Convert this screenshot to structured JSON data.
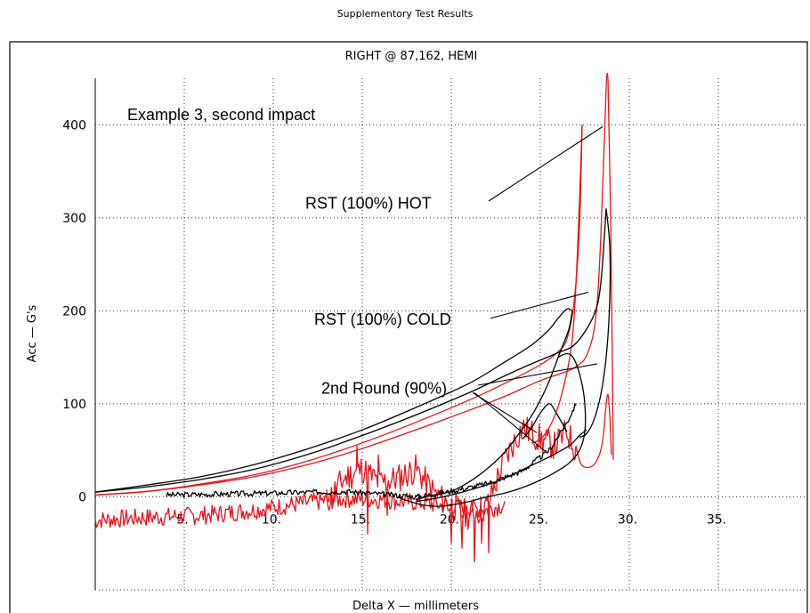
{
  "page_title": "Supplementory Test Results",
  "chart_data": {
    "type": "line",
    "title": "RIGHT @ 87,162, HEMI",
    "xlabel": "Delta X  —  millimeters",
    "ylabel": "Acc  —  G's",
    "xlim": [
      0,
      40
    ],
    "ylim": [
      -100,
      450
    ],
    "x_ticks": [
      {
        "value": 5,
        "label": "5."
      },
      {
        "value": 10,
        "label": "10."
      },
      {
        "value": 15,
        "label": "15."
      },
      {
        "value": 20,
        "label": "20."
      },
      {
        "value": 25,
        "label": "25."
      },
      {
        "value": 30,
        "label": "30."
      },
      {
        "value": 35,
        "label": "35."
      }
    ],
    "y_ticks": [
      {
        "value": 0,
        "label": "0"
      },
      {
        "value": 100,
        "label": "100"
      },
      {
        "value": 200,
        "label": "200"
      },
      {
        "value": 300,
        "label": "300"
      },
      {
        "value": 400,
        "label": "400"
      }
    ],
    "grid": true,
    "grid_style": "dotted",
    "colors": {
      "red": "#e8141c",
      "black": "#000000"
    },
    "annotations": [
      {
        "text": "Example 3, second impact",
        "x": 1.8,
        "y": 405
      },
      {
        "text": "RST (100%) HOT",
        "x": 11.8,
        "y": 310,
        "pointer": [
          [
            22.1,
            318
          ],
          [
            28.5,
            398
          ]
        ]
      },
      {
        "text": "RST (100%) COLD",
        "x": 12.3,
        "y": 185,
        "pointer": [
          [
            22.2,
            192
          ],
          [
            27.7,
            220
          ]
        ]
      },
      {
        "text": "2nd Round (90%)",
        "x": 12.7,
        "y": 111,
        "pointers": [
          [
            [
              21.5,
              120
            ],
            [
              28.2,
              143
            ]
          ],
          [
            [
              21.2,
              112
            ],
            [
              24.8,
              69
            ]
          ],
          [
            [
              21.3,
              112
            ],
            [
              25.4,
              47
            ]
          ]
        ]
      }
    ],
    "series": [
      {
        "color": "red",
        "style": "smooth",
        "points": [
          [
            0,
            2
          ],
          [
            3,
            6
          ],
          [
            6,
            13
          ],
          [
            9,
            22
          ],
          [
            12,
            35
          ],
          [
            15,
            52
          ],
          [
            18,
            72
          ],
          [
            21,
            93
          ],
          [
            23,
            108
          ],
          [
            25,
            125
          ],
          [
            26.5,
            135
          ],
          [
            27,
            140
          ],
          [
            27.6,
            152
          ],
          [
            28.1,
            190
          ],
          [
            28.4,
            280
          ],
          [
            28.7,
            440
          ],
          [
            28.8,
            450
          ]
        ]
      },
      {
        "color": "red",
        "style": "smooth",
        "points": [
          [
            0,
            2
          ],
          [
            3,
            6
          ],
          [
            6,
            14
          ],
          [
            9,
            24
          ],
          [
            12,
            39
          ],
          [
            15,
            58
          ],
          [
            18,
            80
          ],
          [
            21,
            104
          ],
          [
            23,
            122
          ],
          [
            25,
            142
          ],
          [
            26,
            156
          ],
          [
            26.5,
            170
          ],
          [
            26.9,
            210
          ],
          [
            27.2,
            290
          ],
          [
            27.35,
            400
          ]
        ]
      },
      {
        "color": "red",
        "style": "smooth",
        "points": [
          [
            27.35,
            400
          ],
          [
            27.1,
            270
          ],
          [
            26.8,
            170
          ],
          [
            26.2,
            110
          ],
          [
            25.6,
            78
          ],
          [
            25,
            62
          ],
          [
            24.5,
            58
          ]
        ]
      },
      {
        "color": "red",
        "style": "smooth",
        "points": [
          [
            28.8,
            450
          ],
          [
            28.95,
            300
          ],
          [
            29.05,
            140
          ],
          [
            29.1,
            40
          ]
        ]
      },
      {
        "color": "red",
        "style": "noise",
        "seed": 7,
        "amp": 10,
        "spikes": [],
        "points": [
          [
            0,
            -25
          ],
          [
            3,
            -22
          ],
          [
            6,
            -20
          ],
          [
            9,
            -14
          ],
          [
            12,
            -6
          ],
          [
            14,
            -2
          ],
          [
            16,
            -3
          ],
          [
            18,
            -6
          ],
          [
            20,
            -10
          ],
          [
            22,
            -14
          ],
          [
            23,
            -8
          ]
        ]
      },
      {
        "color": "red",
        "style": "noise",
        "seed": 11,
        "amp": 16,
        "spikes": [
          [
            14.7,
            55
          ],
          [
            15.3,
            -40
          ],
          [
            15.9,
            45
          ],
          [
            16.4,
            -20
          ],
          [
            20,
            -50
          ],
          [
            20.6,
            -55
          ],
          [
            21.3,
            -70
          ],
          [
            21.7,
            -50
          ],
          [
            22.1,
            -60
          ]
        ],
        "points": [
          [
            13,
            -5
          ],
          [
            14,
            20
          ],
          [
            15,
            30
          ],
          [
            16,
            15
          ],
          [
            17,
            20
          ],
          [
            18,
            30
          ],
          [
            19,
            5
          ],
          [
            20,
            -10
          ],
          [
            21,
            -20
          ],
          [
            22,
            -10
          ],
          [
            23,
            40
          ],
          [
            24,
            75
          ],
          [
            25,
            62
          ],
          [
            25.8,
            55
          ],
          [
            26.5,
            70
          ],
          [
            27,
            50
          ]
        ]
      },
      {
        "color": "red",
        "style": "smooth",
        "points": [
          [
            27,
            55
          ],
          [
            27.3,
            35
          ],
          [
            27.8,
            32
          ],
          [
            28.2,
            40
          ],
          [
            28.5,
            60
          ],
          [
            28.8,
            110
          ],
          [
            29,
            45
          ]
        ]
      },
      {
        "color": "black",
        "style": "smooth",
        "points": [
          [
            0,
            5
          ],
          [
            3,
            11
          ],
          [
            6,
            19
          ],
          [
            9,
            30
          ],
          [
            12,
            46
          ],
          [
            15,
            66
          ],
          [
            18,
            88
          ],
          [
            21,
            112
          ],
          [
            23,
            130
          ],
          [
            24.5,
            143
          ],
          [
            26,
            155
          ],
          [
            27,
            165
          ],
          [
            28,
            195
          ],
          [
            28.4,
            230
          ],
          [
            28.7,
            310
          ]
        ]
      },
      {
        "color": "black",
        "style": "smooth",
        "points": [
          [
            28.7,
            310
          ],
          [
            28.9,
            270
          ],
          [
            28.9,
            210
          ],
          [
            28.7,
            150
          ],
          [
            28.4,
            110
          ],
          [
            28,
            82
          ],
          [
            27.6,
            68
          ],
          [
            27.2,
            64
          ]
        ]
      },
      {
        "color": "black",
        "style": "smooth",
        "points": [
          [
            0,
            5
          ],
          [
            3,
            13
          ],
          [
            6,
            22
          ],
          [
            9,
            35
          ],
          [
            12,
            52
          ],
          [
            15,
            72
          ],
          [
            18,
            96
          ],
          [
            21,
            122
          ],
          [
            23,
            145
          ],
          [
            24.5,
            163
          ],
          [
            25.5,
            180
          ],
          [
            26,
            192
          ],
          [
            26.5,
            202
          ],
          [
            26.8,
            200
          ]
        ]
      },
      {
        "color": "black",
        "style": "smooth",
        "points": [
          [
            26.8,
            200
          ],
          [
            26.6,
            180
          ],
          [
            26.1,
            155
          ],
          [
            25.4,
            120
          ],
          [
            24.6,
            90
          ],
          [
            23.8,
            68
          ],
          [
            23,
            48
          ],
          [
            22,
            30
          ],
          [
            21,
            16
          ],
          [
            20,
            6
          ],
          [
            19,
            2
          ],
          [
            18,
            -3
          ]
        ]
      },
      {
        "color": "black",
        "style": "smooth",
        "points": [
          [
            26,
            150
          ],
          [
            26.5,
            154
          ],
          [
            26.9,
            148
          ],
          [
            27.3,
            125
          ],
          [
            27.5,
            100
          ],
          [
            27.5,
            70
          ],
          [
            27.2,
            50
          ],
          [
            26.6,
            36
          ],
          [
            25.8,
            26
          ],
          [
            25,
            18
          ],
          [
            24,
            10
          ],
          [
            23,
            4
          ],
          [
            22,
            0
          ],
          [
            21,
            -5
          ],
          [
            19.5,
            -10
          ],
          [
            18.5,
            -9
          ],
          [
            17.5,
            -4
          ],
          [
            17,
            0
          ]
        ]
      },
      {
        "color": "black",
        "style": "smooth",
        "points": [
          [
            18,
            -5
          ],
          [
            19,
            -2
          ],
          [
            20,
            2
          ],
          [
            21.5,
            10
          ],
          [
            23,
            20
          ],
          [
            24.3,
            32
          ],
          [
            25.2,
            40
          ],
          [
            26,
            48
          ],
          [
            26.7,
            56
          ],
          [
            27.2,
            66
          ],
          [
            27.6,
            72
          ]
        ]
      },
      {
        "color": "black",
        "style": "smooth",
        "points": [
          [
            26.5,
            70
          ],
          [
            25.9,
            90
          ],
          [
            25.5,
            100
          ],
          [
            25,
            90
          ],
          [
            24.5,
            74
          ],
          [
            24,
            62
          ]
        ]
      },
      {
        "color": "black",
        "style": "noise",
        "seed": 3,
        "amp": 3,
        "spikes": [],
        "points": [
          [
            4,
            2
          ],
          [
            7,
            3
          ],
          [
            10,
            4
          ],
          [
            12,
            5
          ],
          [
            14,
            6
          ],
          [
            16,
            3
          ],
          [
            18,
            0
          ],
          [
            20,
            6
          ],
          [
            22,
            14
          ],
          [
            24,
            28
          ],
          [
            25.5,
            50
          ],
          [
            26.5,
            80
          ],
          [
            27,
            100
          ]
        ]
      }
    ]
  }
}
